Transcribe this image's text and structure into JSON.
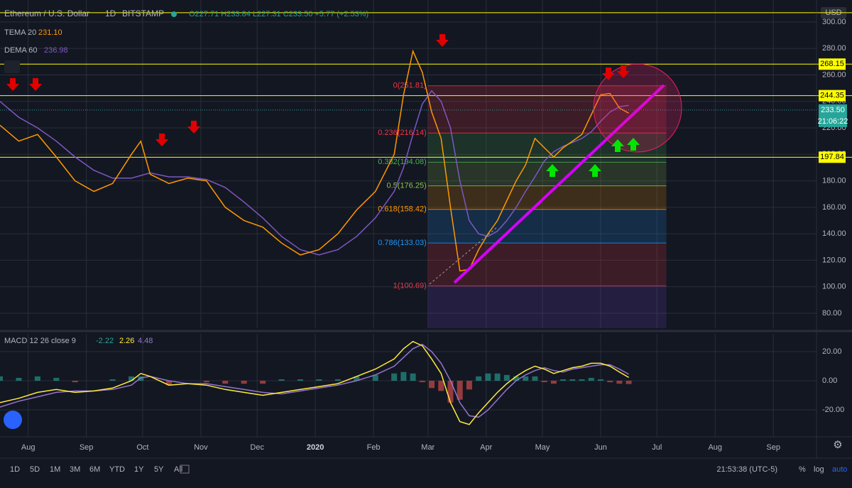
{
  "header": {
    "symbol": "Ethereum / U.S. Dollar",
    "interval": "1D",
    "exchange": "BITSTAMP",
    "ohlc": "O227.71 H233.84 L227.31 C233.50 +5.77 (+2.53%)",
    "indicator_values": [
      "231.10",
      "236.98"
    ],
    "currency": "USD"
  },
  "toolbar": {
    "ranges": [
      "1D",
      "5D",
      "1M",
      "3M",
      "6M",
      "YTD",
      "1Y",
      "5Y",
      "All"
    ],
    "time": "21:53:38 (UTC-5)",
    "options": [
      "%",
      "log",
      "auto"
    ]
  },
  "chart_data": [
    {
      "type": "line",
      "x": [
        -15,
        -5,
        5,
        15,
        25,
        35,
        45,
        55,
        60,
        65,
        75,
        85,
        95,
        105,
        115,
        125,
        135,
        145,
        155,
        165,
        175,
        185,
        195,
        200,
        205,
        210,
        215,
        220,
        225,
        230,
        235,
        240,
        245,
        250,
        255,
        260,
        265,
        270,
        275,
        280,
        285,
        290,
        295,
        300,
        305,
        310,
        315,
        320
      ],
      "series": [
        {
          "name": "TEMA 20",
          "color": "#ff9800",
          "values": [
            222,
            210,
            215,
            198,
            180,
            172,
            178,
            200,
            210,
            185,
            178,
            182,
            180,
            160,
            150,
            145,
            133,
            124,
            128,
            140,
            158,
            172,
            200,
            245,
            278,
            262,
            232,
            212,
            160,
            112,
            113,
            128,
            140,
            150,
            165,
            180,
            192,
            212,
            205,
            198,
            205,
            210,
            215,
            230,
            245,
            246,
            235,
            231.1
          ]
        },
        {
          "name": "DEMA 60",
          "color": "#7e57c2",
          "values": [
            240,
            228,
            220,
            210,
            198,
            188,
            182,
            182,
            184,
            186,
            183,
            183,
            181,
            175,
            164,
            152,
            138,
            128,
            124,
            128,
            138,
            152,
            172,
            190,
            215,
            238,
            248,
            240,
            220,
            180,
            150,
            140,
            138,
            142,
            150,
            160,
            172,
            183,
            195,
            202,
            206,
            209,
            212,
            217,
            225,
            232,
            236,
            236.98
          ]
        }
      ],
      "xlim": [
        -15,
        420
      ],
      "xticks": [
        {
          "value": 0,
          "label": "Aug"
        },
        {
          "value": 31,
          "label": "Sep"
        },
        {
          "value": 61,
          "label": "Oct"
        },
        {
          "value": 92,
          "label": "Nov"
        },
        {
          "value": 122,
          "label": "Dec"
        },
        {
          "value": 153,
          "label": "2020"
        },
        {
          "value": 184,
          "label": "Feb"
        },
        {
          "value": 213,
          "label": "Mar"
        },
        {
          "value": 244,
          "label": "Apr"
        },
        {
          "value": 274,
          "label": "May"
        },
        {
          "value": 305,
          "label": "Jun"
        },
        {
          "value": 335,
          "label": "Jul"
        },
        {
          "value": 366,
          "label": "Aug"
        },
        {
          "value": 397,
          "label": "Sep"
        }
      ],
      "ylim": [
        68.7,
        316.6
      ],
      "yticks": [
        {
          "value": 80,
          "label": "80.00"
        },
        {
          "value": 100,
          "label": "100.00"
        },
        {
          "value": 120,
          "label": "120.00"
        },
        {
          "value": 140,
          "label": "140.00"
        },
        {
          "value": 160,
          "label": "160.00"
        },
        {
          "value": 180,
          "label": "180.00"
        },
        {
          "value": 200,
          "label": "200.00"
        },
        {
          "value": 220,
          "label": "220.00"
        },
        {
          "value": 240,
          "label": "240.00"
        },
        {
          "value": 260,
          "label": "260.00"
        },
        {
          "value": 280,
          "label": "280.00"
        },
        {
          "value": 300,
          "label": "300.00"
        }
      ],
      "grid": true,
      "hlines": [
        {
          "value": 307
        },
        {
          "value": 268.15,
          "label": "268.15"
        },
        {
          "value": 244.35,
          "label": "244.35"
        },
        {
          "value": 197.84,
          "label": "197.84"
        }
      ],
      "hline_color": "#ffff00",
      "last_price": {
        "value": 233.5,
        "label": "233.50",
        "countdown": "21:06:22",
        "color": "#26a69a"
      },
      "fib": [
        {
          "label": "0(251.81)",
          "value": 251.81,
          "color": "#f23645"
        },
        {
          "label": "0.236(216.14)",
          "value": 216.14,
          "color": "#f23645"
        },
        {
          "label": "0.382(194.08)",
          "value": 194.08,
          "color": "#4caf50"
        },
        {
          "label": "0.5(176.25)",
          "value": 176.25,
          "color": "#8bc34a"
        },
        {
          "label": "0.618(158.42)",
          "value": 158.42,
          "color": "#ff9800"
        },
        {
          "label": "0.786(133.03)",
          "value": 133.03,
          "color": "#2196f3"
        },
        {
          "label": "1(100.69)",
          "value": 100.69,
          "color": "#f23645"
        }
      ]
    },
    {
      "type": "macd",
      "title": "MACD 12 26 close 9",
      "x": [
        -15,
        -5,
        5,
        15,
        25,
        35,
        45,
        55,
        60,
        65,
        75,
        85,
        95,
        105,
        115,
        125,
        135,
        145,
        155,
        165,
        175,
        185,
        195,
        200,
        205,
        210,
        215,
        220,
        225,
        230,
        235,
        240,
        245,
        250,
        255,
        260,
        265,
        270,
        275,
        280,
        285,
        290,
        295,
        300,
        305,
        310,
        315,
        320
      ],
      "series": [
        {
          "name": "Histogram",
          "color": "#26a69a",
          "values": [
            3,
            2,
            3,
            2,
            -1,
            0,
            1,
            3,
            3,
            0,
            -3,
            0,
            -1,
            -2,
            -2,
            -2,
            1,
            1,
            1,
            1,
            3,
            4,
            5,
            6,
            5,
            -1,
            -5,
            -7,
            -15,
            -13,
            -6,
            3,
            5,
            5,
            4,
            3,
            3,
            3,
            -1,
            -2,
            1,
            1,
            1,
            2,
            1,
            -1,
            -2,
            -2.22
          ]
        },
        {
          "name": "MACD",
          "color": "#ffeb3b",
          "values": [
            -15,
            -12,
            -8,
            -6,
            -8,
            -7,
            -5,
            0,
            5,
            3,
            -3,
            -2,
            -3,
            -6,
            -8,
            -10,
            -8,
            -6,
            -4,
            -2,
            3,
            8,
            15,
            22,
            27,
            24,
            15,
            5,
            -15,
            -28,
            -30,
            -22,
            -15,
            -8,
            -2,
            3,
            7,
            10,
            8,
            5,
            7,
            9,
            10,
            12,
            12,
            10,
            6,
            2.26
          ]
        },
        {
          "name": "Signal",
          "color": "#9575cd",
          "values": [
            -18,
            -14,
            -11,
            -8,
            -7,
            -7,
            -6,
            -3,
            2,
            3,
            0,
            -2,
            -2,
            -4,
            -6,
            -8,
            -9,
            -7,
            -5,
            -3,
            0,
            4,
            10,
            16,
            22,
            25,
            20,
            12,
            0,
            -15,
            -24,
            -25,
            -20,
            -13,
            -6,
            0,
            4,
            7,
            9,
            7,
            6,
            8,
            9,
            10,
            11,
            11,
            8,
            4.48
          ]
        }
      ],
      "xlim": [
        -15,
        420
      ],
      "ylim": [
        -38.5,
        32.2
      ],
      "yticks": [
        {
          "value": 20,
          "label": "20.00"
        },
        {
          "value": 0,
          "label": "0.00"
        },
        {
          "value": -20,
          "label": "-20.00"
        }
      ],
      "grid": true
    }
  ]
}
